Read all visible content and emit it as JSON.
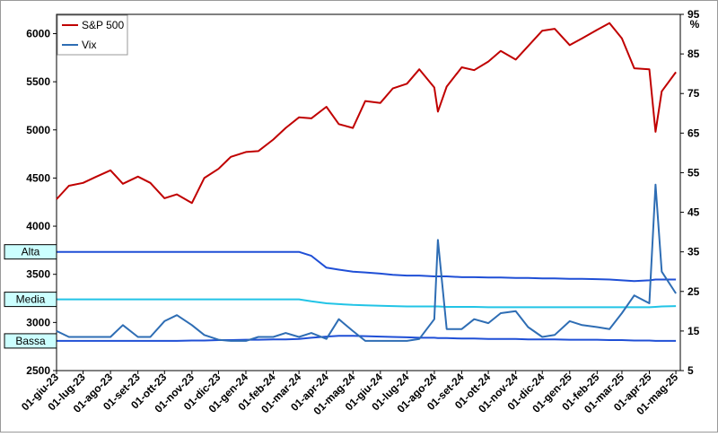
{
  "chart_data": {
    "type": "line",
    "x": [
      "2023-06-01",
      "2023-06-15",
      "2023-07-01",
      "2023-07-15",
      "2023-08-01",
      "2023-08-15",
      "2023-09-01",
      "2023-09-15",
      "2023-10-01",
      "2023-10-15",
      "2023-11-01",
      "2023-11-15",
      "2023-12-01",
      "2023-12-15",
      "2024-01-01",
      "2024-01-15",
      "2024-02-01",
      "2024-02-15",
      "2024-03-01",
      "2024-03-15",
      "2024-04-01",
      "2024-04-15",
      "2024-05-01",
      "2024-05-15",
      "2024-06-01",
      "2024-06-15",
      "2024-07-01",
      "2024-07-15",
      "2024-08-01",
      "2024-08-05",
      "2024-08-15",
      "2024-09-01",
      "2024-09-15",
      "2024-10-01",
      "2024-10-15",
      "2024-11-01",
      "2024-11-15",
      "2024-12-01",
      "2024-12-15",
      "2025-01-01",
      "2025-01-15",
      "2025-02-01",
      "2025-02-15",
      "2025-03-01",
      "2025-03-15",
      "2025-04-01",
      "2025-04-08",
      "2025-04-15",
      "2025-05-01"
    ],
    "series": [
      {
        "name": "S&P 500",
        "color": "#c00000",
        "values": [
          4280,
          4420,
          4450,
          4510,
          4580,
          4440,
          4515,
          4450,
          4290,
          4330,
          4240,
          4500,
          4595,
          4720,
          4770,
          4780,
          4900,
          5020,
          5130,
          5120,
          5240,
          5060,
          5020,
          5300,
          5280,
          5430,
          5480,
          5630,
          5440,
          5190,
          5450,
          5650,
          5620,
          5710,
          5820,
          5730,
          5870,
          6030,
          6050,
          5880,
          5950,
          6040,
          6110,
          5950,
          5640,
          5630,
          4980,
          5400,
          5600
        ]
      },
      {
        "name": "Vix",
        "color": "#2e6db4",
        "axis": "y2",
        "values": [
          15,
          13.5,
          13.5,
          13.5,
          13.5,
          16.5,
          13.5,
          13.5,
          17.5,
          19,
          16.5,
          14,
          12.8,
          12.5,
          12.5,
          13.5,
          13.5,
          14.5,
          13.5,
          14.5,
          13,
          18,
          15,
          12.5,
          12.5,
          12.5,
          12.5,
          13,
          18,
          38,
          15.5,
          15.5,
          18,
          17,
          19.5,
          20,
          16,
          13.5,
          14,
          17.5,
          16.5,
          16,
          15.5,
          19.5,
          24,
          22,
          52,
          30,
          24.5
        ]
      }
    ],
    "bands": [
      {
        "name": "Alta",
        "color": "#1f4fd6",
        "values": [
          35,
          35,
          35,
          35,
          35,
          35,
          35,
          35,
          35,
          35,
          35,
          35,
          35,
          35,
          35,
          35,
          35,
          35,
          35,
          34,
          31,
          30.5,
          30,
          29.8,
          29.5,
          29.2,
          29,
          29,
          28.8,
          28.8,
          28.8,
          28.6,
          28.6,
          28.5,
          28.5,
          28.4,
          28.4,
          28.3,
          28.3,
          28.2,
          28.2,
          28.1,
          28,
          27.8,
          27.6,
          27.8,
          28,
          28,
          28
        ]
      },
      {
        "name": "Media",
        "color": "#22c4e6",
        "values": [
          23,
          23,
          23,
          23,
          23,
          23,
          23,
          23,
          23,
          23,
          23,
          23,
          23,
          23,
          23,
          23,
          23,
          23,
          23,
          22.5,
          22,
          21.8,
          21.6,
          21.5,
          21.4,
          21.3,
          21.2,
          21.2,
          21.2,
          21.2,
          21.1,
          21.1,
          21.1,
          21,
          21,
          21,
          21,
          21,
          21,
          21,
          21,
          21,
          21,
          21,
          21,
          21,
          21.1,
          21.2,
          21.3
        ]
      },
      {
        "name": "Bassa",
        "color": "#1f4fd6",
        "values": [
          12.5,
          12.5,
          12.5,
          12.5,
          12.5,
          12.5,
          12.5,
          12.5,
          12.5,
          12.5,
          12.6,
          12.6,
          12.7,
          12.7,
          12.8,
          12.8,
          12.9,
          12.9,
          13,
          13.3,
          13.6,
          13.8,
          13.8,
          13.7,
          13.6,
          13.5,
          13.4,
          13.3,
          13.3,
          13.2,
          13.2,
          13.1,
          13.1,
          13,
          13,
          13,
          12.9,
          12.9,
          12.9,
          12.8,
          12.8,
          12.8,
          12.7,
          12.7,
          12.6,
          12.6,
          12.5,
          12.5,
          12.5
        ]
      }
    ],
    "xlim": [
      "2023-06-01",
      "2025-05-06"
    ],
    "xticks": [
      {
        "value": "2023-06-01",
        "label": "01-giu-23"
      },
      {
        "value": "2023-07-01",
        "label": "01-lug-23"
      },
      {
        "value": "2023-08-01",
        "label": "01-ago-23"
      },
      {
        "value": "2023-09-01",
        "label": "01-set-23"
      },
      {
        "value": "2023-10-01",
        "label": "01-ott-23"
      },
      {
        "value": "2023-11-01",
        "label": "01-nov-23"
      },
      {
        "value": "2023-12-01",
        "label": "01-dic-23"
      },
      {
        "value": "2024-01-01",
        "label": "01-gen-24"
      },
      {
        "value": "2024-02-01",
        "label": "01-feb-24"
      },
      {
        "value": "2024-03-01",
        "label": "01-mar-24"
      },
      {
        "value": "2024-04-01",
        "label": "01-apr-24"
      },
      {
        "value": "2024-05-01",
        "label": "01-mag-24"
      },
      {
        "value": "2024-06-01",
        "label": "01-giu-24"
      },
      {
        "value": "2024-07-01",
        "label": "01-lug-24"
      },
      {
        "value": "2024-08-01",
        "label": "01-ago-24"
      },
      {
        "value": "2024-09-01",
        "label": "01-set-24"
      },
      {
        "value": "2024-10-01",
        "label": "01-ott-24"
      },
      {
        "value": "2024-11-01",
        "label": "01-nov-24"
      },
      {
        "value": "2024-12-01",
        "label": "01-dic-24"
      },
      {
        "value": "2025-01-01",
        "label": "01-gen-25"
      },
      {
        "value": "2025-02-01",
        "label": "01-feb-25"
      },
      {
        "value": "2025-03-01",
        "label": "01-mar-25"
      },
      {
        "value": "2025-04-01",
        "label": "01-apr-25"
      },
      {
        "value": "2025-05-01",
        "label": "01-mag-25"
      }
    ],
    "ylim": [
      2500,
      6200
    ],
    "yticks": [
      2500,
      3000,
      3500,
      4000,
      4500,
      5000,
      5500,
      6000
    ],
    "y2lim": [
      5,
      95
    ],
    "y2ticks": [
      5,
      15,
      25,
      35,
      45,
      55,
      65,
      75,
      85,
      95
    ],
    "y2_unit": "%",
    "grid": false,
    "legend": "top-left"
  }
}
